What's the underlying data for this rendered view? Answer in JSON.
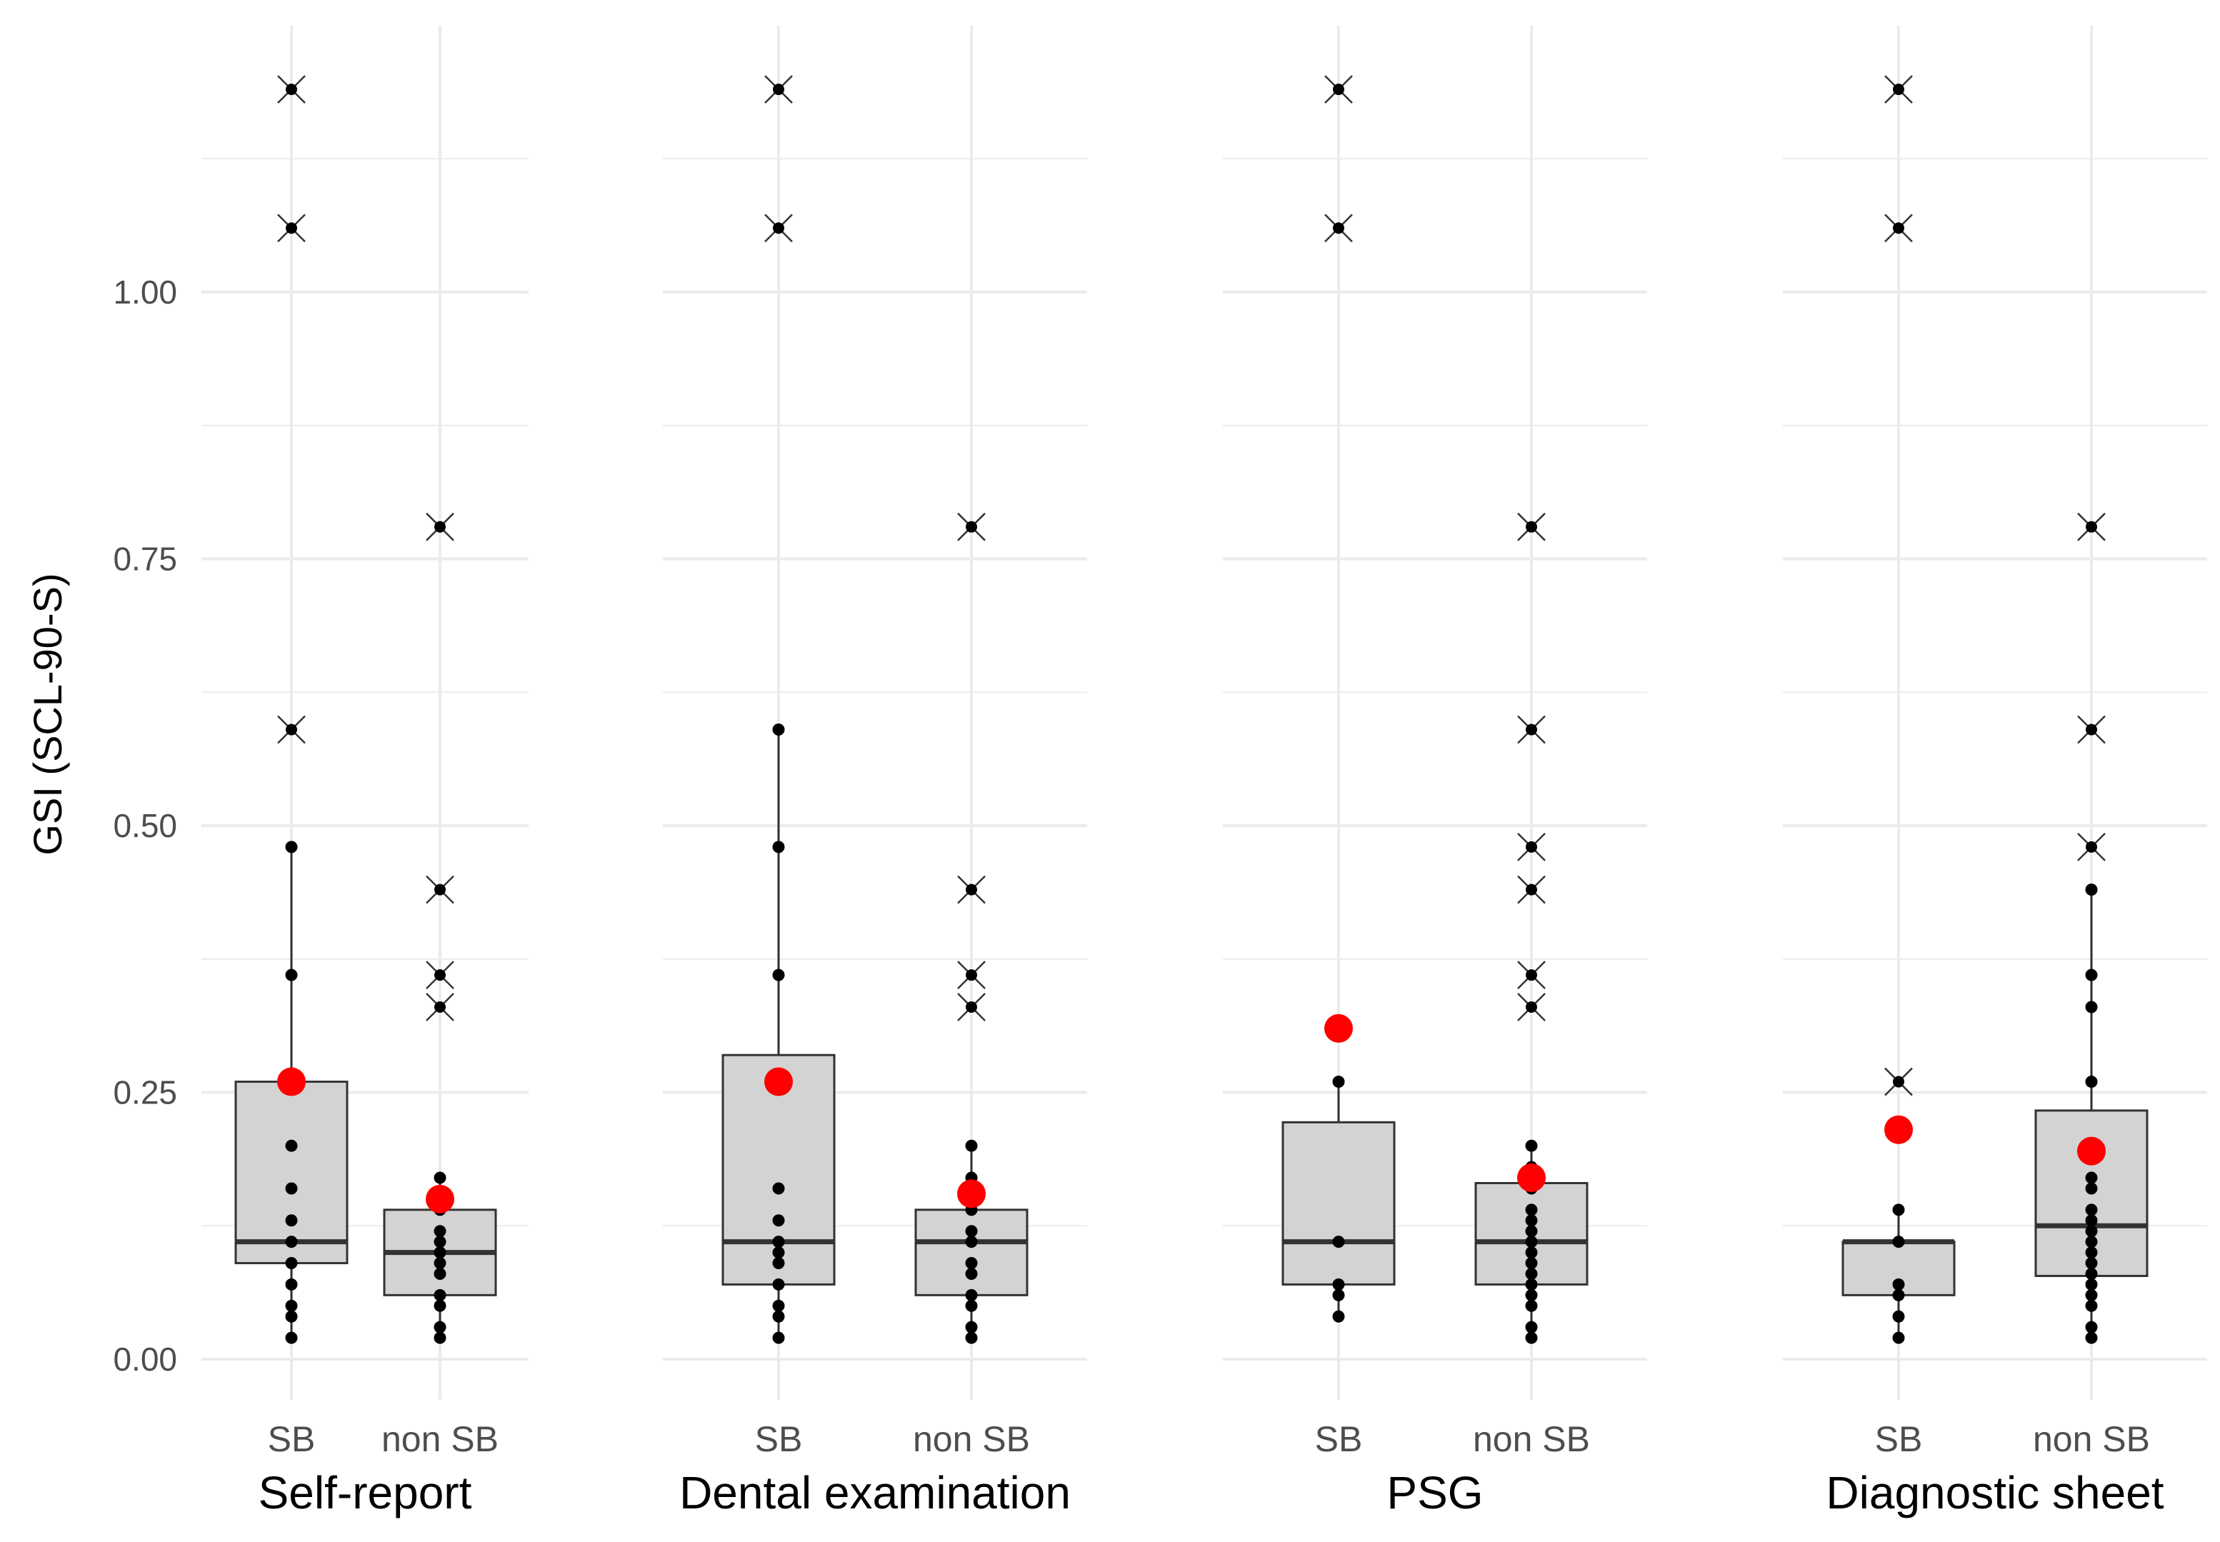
{
  "chart_data": {
    "type": "box",
    "ylabel": "GSI (SCL-90-S)",
    "ylim": [
      -0.05,
      1.26
    ],
    "yticks": [
      0.0,
      0.25,
      0.5,
      0.75,
      1.0
    ],
    "ytick_labels": [
      "0.00",
      "0.25",
      "0.50",
      "0.75",
      "1.00"
    ],
    "colors": {
      "box_fill": "#d3d3d3",
      "box_stroke": "#333333",
      "mean": "#ff0000",
      "point": "#000000",
      "grid": "#ebebeb"
    },
    "legend": "none",
    "panels": [
      {
        "label": "Self-report",
        "groups": [
          {
            "label": "SB",
            "q1": 0.09,
            "median": 0.11,
            "q3": 0.26,
            "whisker_low": 0.02,
            "whisker_high": 0.48,
            "mean": 0.26,
            "points": [
              0.02,
              0.04,
              0.05,
              0.07,
              0.09,
              0.11,
              0.13,
              0.16,
              0.2,
              0.26,
              0.36,
              0.48
            ],
            "outliers": [
              0.59,
              1.06,
              1.19
            ]
          },
          {
            "label": "non SB",
            "q1": 0.06,
            "median": 0.1,
            "q3": 0.14,
            "whisker_low": 0.02,
            "whisker_high": 0.17,
            "mean": 0.15,
            "points": [
              0.02,
              0.03,
              0.05,
              0.06,
              0.08,
              0.09,
              0.1,
              0.11,
              0.12,
              0.14,
              0.15,
              0.17
            ],
            "outliers": [
              0.33,
              0.36,
              0.44,
              0.78
            ]
          }
        ]
      },
      {
        "label": "Dental examination",
        "groups": [
          {
            "label": "SB",
            "q1": 0.07,
            "median": 0.11,
            "q3": 0.285,
            "whisker_low": 0.02,
            "whisker_high": 0.59,
            "mean": 0.26,
            "points": [
              0.02,
              0.04,
              0.05,
              0.07,
              0.09,
              0.1,
              0.11,
              0.13,
              0.16,
              0.26,
              0.36,
              0.48,
              0.59
            ],
            "outliers": [
              1.06,
              1.19
            ]
          },
          {
            "label": "non SB",
            "q1": 0.06,
            "median": 0.11,
            "q3": 0.14,
            "whisker_low": 0.02,
            "whisker_high": 0.2,
            "mean": 0.155,
            "points": [
              0.02,
              0.03,
              0.05,
              0.06,
              0.08,
              0.09,
              0.11,
              0.12,
              0.14,
              0.15,
              0.17,
              0.2
            ],
            "outliers": [
              0.33,
              0.36,
              0.44,
              0.78
            ]
          }
        ]
      },
      {
        "label": "PSG",
        "groups": [
          {
            "label": "SB",
            "q1": 0.07,
            "median": 0.11,
            "q3": 0.222,
            "whisker_low": 0.04,
            "whisker_high": 0.26,
            "mean": 0.31,
            "points": [
              0.04,
              0.06,
              0.07,
              0.11,
              0.26
            ],
            "outliers": [
              1.06,
              1.19
            ]
          },
          {
            "label": "non SB",
            "q1": 0.07,
            "median": 0.11,
            "q3": 0.165,
            "whisker_low": 0.02,
            "whisker_high": 0.2,
            "mean": 0.17,
            "points": [
              0.02,
              0.03,
              0.05,
              0.06,
              0.07,
              0.08,
              0.09,
              0.1,
              0.11,
              0.12,
              0.13,
              0.14,
              0.16,
              0.17,
              0.18,
              0.2
            ],
            "outliers": [
              0.33,
              0.36,
              0.44,
              0.48,
              0.59,
              0.78
            ]
          }
        ]
      },
      {
        "label": "Diagnostic sheet",
        "groups": [
          {
            "label": "SB",
            "q1": 0.06,
            "median": 0.11,
            "q3": 0.11,
            "whisker_low": 0.02,
            "whisker_high": 0.14,
            "mean": 0.215,
            "points": [
              0.02,
              0.04,
              0.06,
              0.07,
              0.11,
              0.14
            ],
            "outliers": [
              0.26,
              1.06,
              1.19
            ]
          },
          {
            "label": "non SB",
            "q1": 0.078,
            "median": 0.125,
            "q3": 0.233,
            "whisker_low": 0.02,
            "whisker_high": 0.44,
            "mean": 0.195,
            "points": [
              0.02,
              0.03,
              0.05,
              0.06,
              0.07,
              0.08,
              0.09,
              0.1,
              0.11,
              0.12,
              0.13,
              0.14,
              0.16,
              0.17,
              0.2,
              0.26,
              0.33,
              0.36,
              0.44
            ],
            "outliers": [
              0.48,
              0.59,
              0.78
            ]
          }
        ]
      }
    ]
  }
}
